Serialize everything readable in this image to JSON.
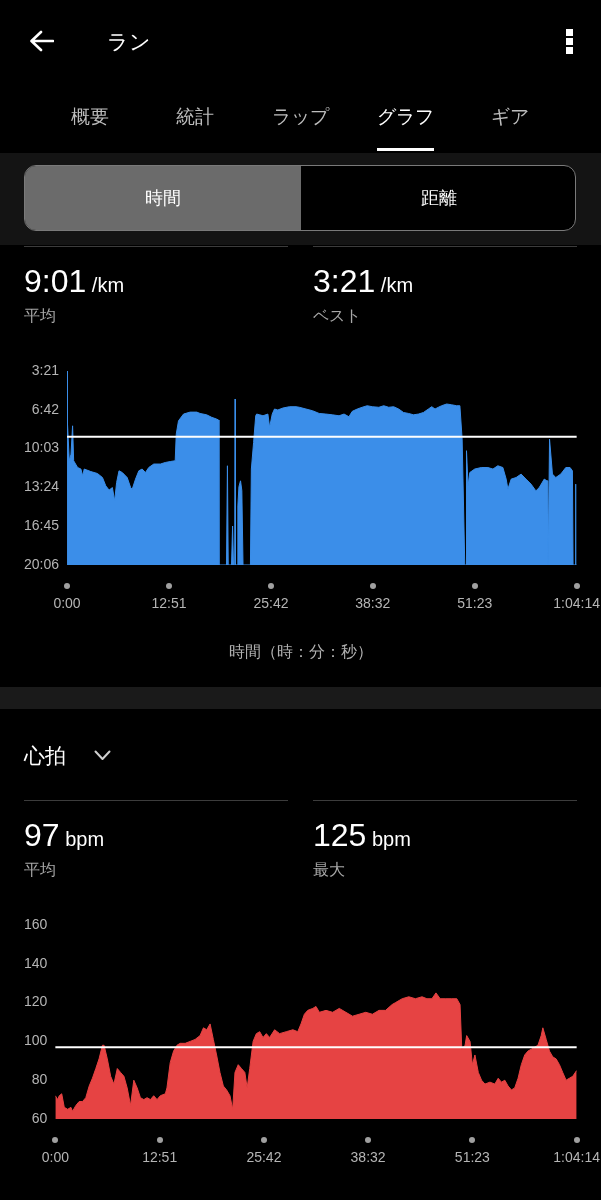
{
  "chart_data": [
    {
      "type": "other",
      "title": "ラン",
      "annotations": [
        "概要",
        "統計",
        "ラップ",
        "グラフ",
        "ギア",
        "時間",
        "距離"
      ]
    },
    {
      "type": "area",
      "annotations": [
        "9:01 /km",
        "平均",
        "3:21 /km",
        "ベスト"
      ],
      "xlabel": "時間（時：分：秒）",
      "color": "#3b8ee9",
      "x": [
        0,
        2,
        5,
        17,
        30,
        42,
        50,
        80,
        105,
        118,
        130,
        180,
        230,
        268,
        293,
        318,
        343,
        360,
        375,
        393,
        418,
        455,
        481,
        493,
        518,
        543,
        568,
        593,
        618,
        656,
        706,
        743,
        781,
        818,
        826,
        843,
        881,
        931,
        981,
        1006,
        1056,
        1094,
        1131,
        1146,
        1149,
        1206,
        1213,
        1219,
        1244,
        1252,
        1259,
        1268,
        1271,
        1274,
        1286,
        1292,
        1300,
        1312,
        1322,
        1331,
        1387,
        1394,
        1411,
        1427,
        1434,
        1457,
        1482,
        1519,
        1532,
        1552,
        1569,
        1594,
        1632,
        1682,
        1732,
        1757,
        1807,
        1857,
        1907,
        1957,
        2007,
        2057,
        2095,
        2132,
        2157,
        2195,
        2232,
        2270,
        2308,
        2358,
        2395,
        2433,
        2470,
        2508,
        2545,
        2583,
        2620,
        2658,
        2695,
        2733,
        2758,
        2783,
        2808,
        2833,
        2871,
        2908,
        2946,
        2971,
        2988,
        3008,
        3018,
        3021,
        3033,
        3046,
        3083,
        3133,
        3183,
        3221,
        3258,
        3296,
        3321,
        3334,
        3359,
        3396,
        3434,
        3471,
        3509,
        3546,
        3571,
        3609,
        3629,
        3636,
        3639,
        3643,
        3649,
        3671,
        3696,
        3734,
        3772,
        3804,
        3822,
        3827,
        3842,
        3846,
        3849,
        3854
      ],
      "values": [
        1206,
        201,
        476,
        666,
        632,
        485,
        666,
        701,
        709,
        744,
        709,
        722,
        732,
        753,
        796,
        818,
        805,
        874,
        779,
        718,
        727,
        753,
        805,
        813,
        761,
        718,
        709,
        727,
        701,
        683,
        683,
        675,
        670,
        666,
        528,
        459,
        424,
        414,
        414,
        421,
        428,
        441,
        450,
        455,
        1206,
        1206,
        692,
        1206,
        1206,
        1004,
        1206,
        1206,
        346,
        1206,
        1206,
        900,
        800,
        770,
        820,
        1206,
        1206,
        709,
        571,
        433,
        424,
        428,
        433,
        424,
        493,
        424,
        398,
        403,
        393,
        386,
        386,
        389,
        398,
        407,
        421,
        424,
        428,
        433,
        424,
        438,
        410,
        398,
        389,
        381,
        386,
        389,
        381,
        389,
        386,
        398,
        416,
        421,
        428,
        424,
        416,
        398,
        386,
        398,
        389,
        381,
        372,
        376,
        381,
        381,
        554,
        1206,
        1206,
        614,
        796,
        727,
        709,
        701,
        701,
        709,
        692,
        701,
        761,
        813,
        761,
        753,
        735,
        761,
        787,
        822,
        805,
        761,
        770,
        770,
        1206,
        1206,
        554,
        735,
        753,
        735,
        701,
        701,
        718,
        1206,
        1206,
        787,
        1206,
        1206
      ],
      "xlim": [
        0,
        3854
      ],
      "xticks": [
        {
          "value": 0,
          "label": "0:00"
        },
        {
          "value": 771,
          "label": "12:51"
        },
        {
          "value": 1542,
          "label": "25:42"
        },
        {
          "value": 2312,
          "label": "38:32"
        },
        {
          "value": 3083,
          "label": "51:23"
        },
        {
          "value": 3854,
          "label": "1:04:14"
        }
      ],
      "ylim": [
        1206,
        201
      ],
      "yticks": [
        {
          "value": 201,
          "label": "3:21"
        },
        {
          "value": 402,
          "label": "6:42"
        },
        {
          "value": 603,
          "label": "10:03"
        },
        {
          "value": 804,
          "label": "13:24"
        },
        {
          "value": 1005,
          "label": "16:45"
        },
        {
          "value": 1206,
          "label": "20:06"
        }
      ],
      "ref_lines": [
        {
          "axis": "y",
          "value": 541,
          "color": "#ffffff"
        }
      ]
    },
    {
      "type": "area",
      "title": "心拍",
      "annotations": [
        "97 bpm",
        "平均",
        "125 bpm",
        "最大"
      ],
      "color": "#e64343",
      "x": [
        0,
        17,
        29,
        47,
        66,
        91,
        115,
        127,
        152,
        176,
        201,
        225,
        250,
        274,
        299,
        323,
        348,
        360,
        384,
        409,
        433,
        458,
        482,
        507,
        531,
        556,
        580,
        605,
        629,
        654,
        678,
        703,
        727,
        752,
        776,
        813,
        825,
        849,
        874,
        899,
        923,
        960,
        997,
        1033,
        1070,
        1095,
        1119,
        1144,
        1168,
        1192,
        1217,
        1242,
        1266,
        1291,
        1311,
        1328,
        1352,
        1376,
        1401,
        1418,
        1437,
        1462,
        1486,
        1511,
        1535,
        1560,
        1584,
        1621,
        1658,
        1707,
        1756,
        1792,
        1816,
        1841,
        1866,
        1903,
        1927,
        1952,
        2001,
        2050,
        2099,
        2148,
        2197,
        2246,
        2295,
        2344,
        2393,
        2441,
        2490,
        2515,
        2564,
        2613,
        2662,
        2711,
        2747,
        2784,
        2814,
        2845,
        2882,
        2931,
        2968,
        2992,
        3005,
        3029,
        3041,
        3066,
        3083,
        3102,
        3127,
        3151,
        3176,
        3213,
        3249,
        3274,
        3298,
        3323,
        3347,
        3372,
        3396,
        3421,
        3445,
        3470,
        3494,
        3519,
        3543,
        3568,
        3592,
        3604,
        3629,
        3653,
        3678,
        3702,
        3727,
        3751,
        3776,
        3800,
        3825,
        3854
      ],
      "values": [
        72,
        70,
        72,
        73,
        66,
        65,
        66,
        64,
        67,
        69,
        69,
        71,
        77,
        81,
        86,
        91,
        98,
        98,
        91,
        82,
        78,
        86,
        84,
        82,
        76,
        67,
        80,
        76,
        71,
        70,
        71,
        70,
        72,
        70,
        72,
        73,
        76,
        89,
        95,
        98,
        99,
        99,
        100,
        101,
        103,
        107,
        106,
        109,
        101,
        93,
        84,
        77,
        75,
        72,
        65,
        84,
        88,
        86,
        84,
        76,
        86,
        100,
        104,
        105,
        102,
        104,
        102,
        106,
        104,
        105,
        106,
        105,
        109,
        114,
        116,
        117,
        118,
        115,
        116,
        115,
        117,
        115,
        113,
        114,
        115,
        114,
        116,
        116,
        119,
        120,
        122,
        123,
        122,
        123,
        122,
        122,
        125,
        122,
        122,
        122,
        122,
        119,
        96,
        98,
        103,
        100,
        88,
        93,
        84,
        80,
        78,
        79,
        78,
        81,
        79,
        80,
        77,
        75,
        76,
        81,
        88,
        93,
        95,
        96,
        97,
        98,
        103,
        107,
        101,
        95,
        92,
        91,
        88,
        84,
        80,
        81,
        82,
        85
      ],
      "xlim": [
        0,
        3854
      ],
      "xticks": [
        {
          "value": 0,
          "label": "0:00"
        },
        {
          "value": 771,
          "label": "12:51"
        },
        {
          "value": 1542,
          "label": "25:42"
        },
        {
          "value": 2312,
          "label": "38:32"
        },
        {
          "value": 3083,
          "label": "51:23"
        },
        {
          "value": 3854,
          "label": "1:04:14"
        }
      ],
      "ylim": [
        60,
        160
      ],
      "yticks": [
        60,
        80,
        100,
        120,
        140,
        160
      ],
      "ref_lines": [
        {
          "axis": "y",
          "value": 97,
          "color": "#ffffff"
        }
      ]
    }
  ]
}
